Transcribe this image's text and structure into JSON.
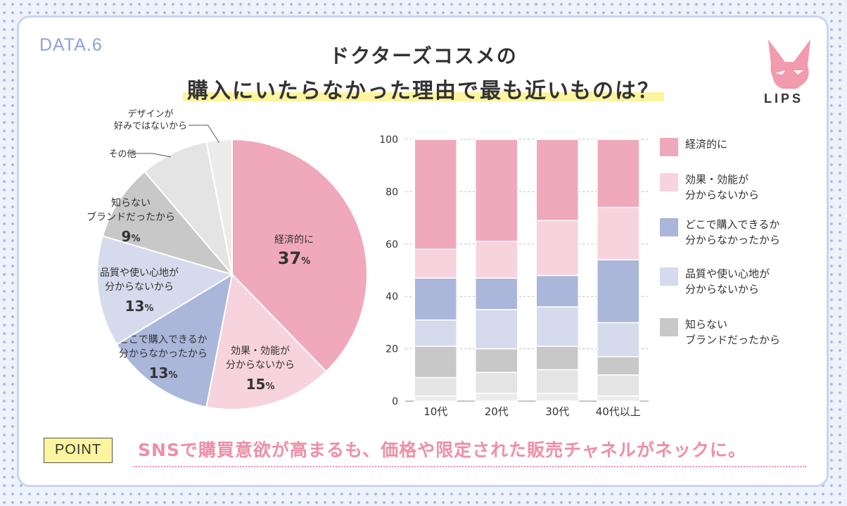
{
  "header": {
    "tag": "DATA.6",
    "title_line1": "ドクターズコスメの",
    "title_line2": "購入にいたらなかった理由で最も近いものは？",
    "logo_text": "LIPS"
  },
  "colors": {
    "economic": "#f0a8bb",
    "effect": "#f6d3dd",
    "where": "#aab6da",
    "quality": "#d5dbed",
    "brand": "#c8c8c8",
    "other": "#e4e4e4",
    "design": "#ececec"
  },
  "chart_data": [
    {
      "type": "pie",
      "title": "",
      "slices": [
        {
          "key": "economic",
          "label": "経済的に",
          "value": 37,
          "label_display": "37",
          "unit": "%"
        },
        {
          "key": "effect",
          "label": "効果・効能が\n分からないから",
          "value": 15,
          "label_display": "15",
          "unit": "%"
        },
        {
          "key": "where",
          "label": "どこで購入できるか\n分からなかったから",
          "value": 13,
          "label_display": "13",
          "unit": "%"
        },
        {
          "key": "quality",
          "label": "品質や使い心地が\n分からないから",
          "value": 13,
          "label_display": "13",
          "unit": "%"
        },
        {
          "key": "brand",
          "label": "知らない\nブランドだったから",
          "value": 9,
          "label_display": "9",
          "unit": "%"
        },
        {
          "key": "other",
          "label": "その他",
          "value": 8
        },
        {
          "key": "design",
          "label": "デザインが\n好みではないから",
          "value": 3
        }
      ]
    },
    {
      "type": "bar",
      "stacked": true,
      "categories": [
        "10代",
        "20代",
        "30代",
        "40代以上"
      ],
      "ylim": [
        0,
        100
      ],
      "yticks": [
        0,
        20,
        40,
        60,
        80,
        100
      ],
      "series": [
        {
          "key": "design",
          "name": "デザインが好みではないから",
          "values": [
            2,
            3,
            3,
            2
          ]
        },
        {
          "key": "other",
          "name": "その他",
          "values": [
            7,
            8,
            9,
            8
          ]
        },
        {
          "key": "brand",
          "name": "知らない\nブランドだったから",
          "values": [
            12,
            9,
            9,
            7
          ]
        },
        {
          "key": "quality",
          "name": "品質や使い心地が\n分からないから",
          "values": [
            10,
            15,
            15,
            13
          ]
        },
        {
          "key": "where",
          "name": "どこで購入できるか\n分からなかったから",
          "values": [
            16,
            12,
            12,
            24
          ]
        },
        {
          "key": "effect",
          "name": "効果・効能が\n分からないから",
          "values": [
            11,
            14,
            21,
            20
          ]
        },
        {
          "key": "economic",
          "name": "経済的に",
          "values": [
            42,
            39,
            31,
            26
          ]
        }
      ],
      "legend": [
        "economic",
        "effect",
        "where",
        "quality",
        "brand"
      ]
    }
  ],
  "point": {
    "label": "POINT",
    "text": "SNSで購買意欲が高まるも、価格や限定された販売チャネルがネックに。"
  }
}
